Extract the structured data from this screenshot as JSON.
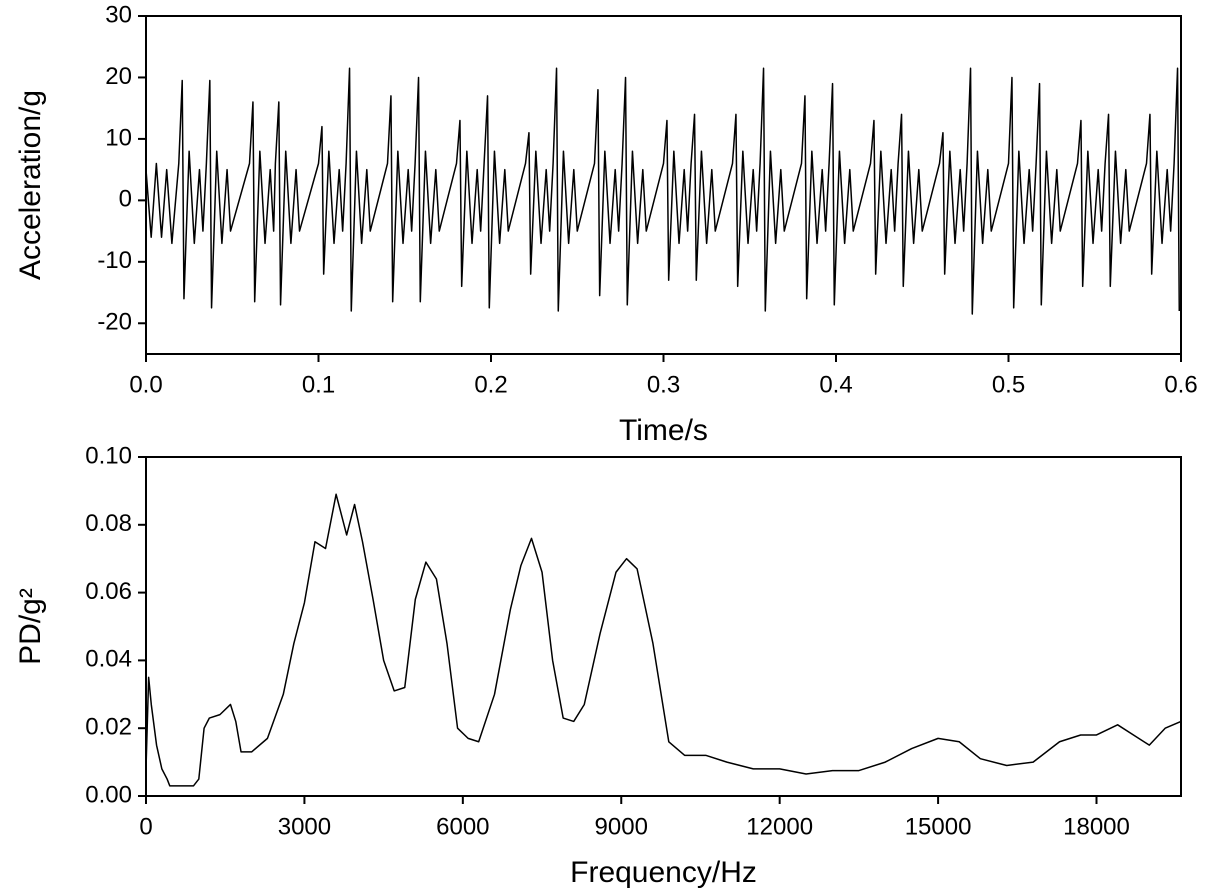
{
  "chart_data": [
    {
      "type": "line",
      "xlabel": "Time/s",
      "ylabel": "Acceleration/g",
      "xlim": [
        0,
        0.6
      ],
      "ylim": [
        -25,
        30
      ],
      "xticks": [
        {
          "value": 0,
          "label": "0.0"
        },
        0.1,
        0.2,
        0.3,
        0.4,
        0.5,
        0.6
      ],
      "yticks": [
        -20,
        -10,
        0,
        10,
        20,
        30
      ],
      "series": [
        {
          "color": "#000000",
          "x": [
            0,
            0.003,
            0.006,
            0.009,
            0.012,
            0.015,
            0.019,
            0.021,
            0.022,
            0.025,
            0.028,
            0.031,
            0.033,
            0.035,
            0.037,
            0.038,
            0.041,
            0.044,
            0.047,
            0.049,
            0.06,
            0.062,
            0.063,
            0.066,
            0.069,
            0.072,
            0.074,
            0.075,
            0.077,
            0.078,
            0.081,
            0.084,
            0.087,
            0.089,
            0.1,
            0.102,
            0.103,
            0.106,
            0.109,
            0.112,
            0.114,
            0.116,
            0.118,
            0.119,
            0.122,
            0.125,
            0.128,
            0.13,
            0.14,
            0.142,
            0.143,
            0.146,
            0.149,
            0.152,
            0.154,
            0.156,
            0.158,
            0.159,
            0.162,
            0.165,
            0.168,
            0.17,
            0.18,
            0.182,
            0.183,
            0.186,
            0.189,
            0.192,
            0.194,
            0.196,
            0.198,
            0.199,
            0.202,
            0.205,
            0.208,
            0.21,
            0.22,
            0.222,
            0.223,
            0.226,
            0.229,
            0.232,
            0.234,
            0.236,
            0.238,
            0.239,
            0.242,
            0.245,
            0.248,
            0.25,
            0.26,
            0.262,
            0.263,
            0.266,
            0.269,
            0.272,
            0.274,
            0.276,
            0.278,
            0.279,
            0.282,
            0.285,
            0.288,
            0.29,
            0.3,
            0.302,
            0.303,
            0.306,
            0.309,
            0.312,
            0.314,
            0.316,
            0.318,
            0.319,
            0.322,
            0.325,
            0.328,
            0.33,
            0.34,
            0.342,
            0.343,
            0.346,
            0.349,
            0.352,
            0.354,
            0.356,
            0.358,
            0.359,
            0.362,
            0.365,
            0.368,
            0.37,
            0.38,
            0.382,
            0.383,
            0.386,
            0.389,
            0.392,
            0.394,
            0.396,
            0.398,
            0.399,
            0.402,
            0.405,
            0.408,
            0.41,
            0.42,
            0.422,
            0.423,
            0.426,
            0.429,
            0.432,
            0.434,
            0.436,
            0.438,
            0.439,
            0.442,
            0.445,
            0.448,
            0.45,
            0.46,
            0.462,
            0.463,
            0.466,
            0.469,
            0.472,
            0.474,
            0.476,
            0.478,
            0.479,
            0.482,
            0.485,
            0.488,
            0.49,
            0.5,
            0.502,
            0.503,
            0.506,
            0.509,
            0.512,
            0.514,
            0.516,
            0.518,
            0.519,
            0.522,
            0.525,
            0.528,
            0.53,
            0.54,
            0.542,
            0.543,
            0.546,
            0.549,
            0.552,
            0.554,
            0.556,
            0.558,
            0.559,
            0.562,
            0.565,
            0.568,
            0.57,
            0.58,
            0.582,
            0.583,
            0.586,
            0.589,
            0.592,
            0.594,
            0.596,
            0.598,
            0.599
          ],
          "values": [
            5,
            -6,
            6,
            -6,
            5,
            -7,
            6,
            19.5,
            -16,
            8,
            -7,
            5,
            -5,
            6,
            19.5,
            -17.5,
            8,
            -7,
            5,
            -5,
            6,
            16,
            -16.5,
            8,
            -7,
            5,
            -5,
            6,
            16,
            -17,
            8,
            -7,
            5,
            -5,
            6,
            12,
            -12,
            8,
            -7,
            5,
            -5,
            6,
            21.5,
            -18,
            8,
            -7,
            5,
            -5,
            6,
            17,
            -16.5,
            8,
            -7,
            5,
            -5,
            6,
            20,
            -16.5,
            8,
            -7,
            5,
            -5,
            6,
            13,
            -14,
            8,
            -7,
            5,
            -5,
            6,
            17,
            -17.5,
            8,
            -7,
            5,
            -5,
            6,
            11,
            -12,
            8,
            -7,
            5,
            -5,
            6,
            21.5,
            -18,
            8,
            -7,
            5,
            -5,
            6,
            18,
            -15.5,
            8,
            -7,
            5,
            -5,
            6,
            20,
            -17,
            8,
            -7,
            5,
            -5,
            6,
            13,
            -13,
            8,
            -7,
            5,
            -5,
            6,
            14,
            -13,
            8,
            -7,
            5,
            -5,
            6,
            14,
            -14,
            8,
            -7,
            5,
            -5,
            6,
            21.5,
            -18,
            8,
            -7,
            5,
            -5,
            6,
            17,
            -16,
            8,
            -7,
            5,
            -5,
            6,
            19,
            -17,
            8,
            -7,
            5,
            -5,
            6,
            13,
            -12,
            8,
            -7,
            5,
            -5,
            6,
            14,
            -14,
            8,
            -7,
            5,
            -5,
            6,
            11,
            -12,
            8,
            -7,
            5,
            -5,
            6,
            21.5,
            -18.5,
            8,
            -7,
            5,
            -5,
            6,
            20,
            -17.5,
            8,
            -7,
            5,
            -5,
            6,
            19,
            -17,
            8,
            -7,
            5,
            -5,
            6,
            13,
            -14,
            8,
            -7,
            5,
            -5,
            6,
            14,
            -14,
            8,
            -7,
            5,
            -5,
            6,
            14,
            -12,
            8,
            -7,
            5,
            -5,
            6,
            21.5,
            -18
          ]
        }
      ]
    },
    {
      "type": "line",
      "xlabel": "Frequency/Hz",
      "ylabel": "PD/g²",
      "xlim": [
        0,
        19600
      ],
      "ylim": [
        0,
        0.1
      ],
      "xticks": [
        0,
        3000,
        6000,
        9000,
        12000,
        15000,
        18000
      ],
      "yticks": [
        {
          "value": 0,
          "label": "0.00"
        },
        {
          "value": 0.02,
          "label": "0.02"
        },
        {
          "value": 0.04,
          "label": "0.04"
        },
        {
          "value": 0.06,
          "label": "0.06"
        },
        {
          "value": 0.08,
          "label": "0.08"
        },
        {
          "value": 0.1,
          "label": "0.10"
        }
      ],
      "series": [
        {
          "color": "#000000",
          "x": [
            0,
            50,
            100,
            200,
            300,
            400,
            450,
            600,
            900,
            1000,
            1100,
            1200,
            1400,
            1600,
            1700,
            1800,
            2000,
            2300,
            2600,
            2800,
            3000,
            3200,
            3400,
            3600,
            3800,
            3950,
            4100,
            4300,
            4500,
            4700,
            4900,
            5100,
            5300,
            5500,
            5700,
            5900,
            6100,
            6300,
            6600,
            6900,
            7100,
            7300,
            7500,
            7700,
            7900,
            8100,
            8300,
            8600,
            8900,
            9100,
            9300,
            9600,
            9900,
            10200,
            10600,
            11000,
            11500,
            12000,
            12500,
            13000,
            13500,
            14000,
            14500,
            15000,
            15400,
            15800,
            16300,
            16800,
            17300,
            17700,
            18000,
            18400,
            18700,
            19000,
            19300,
            19600
          ],
          "values": [
            0.008,
            0.035,
            0.027,
            0.015,
            0.008,
            0.005,
            0.003,
            0.003,
            0.003,
            0.005,
            0.02,
            0.023,
            0.024,
            0.027,
            0.022,
            0.013,
            0.013,
            0.017,
            0.03,
            0.045,
            0.057,
            0.075,
            0.073,
            0.089,
            0.077,
            0.086,
            0.075,
            0.058,
            0.04,
            0.031,
            0.032,
            0.058,
            0.069,
            0.064,
            0.045,
            0.02,
            0.017,
            0.016,
            0.03,
            0.055,
            0.068,
            0.076,
            0.066,
            0.04,
            0.023,
            0.022,
            0.027,
            0.048,
            0.066,
            0.07,
            0.067,
            0.045,
            0.016,
            0.012,
            0.012,
            0.01,
            0.008,
            0.008,
            0.0065,
            0.0075,
            0.0075,
            0.01,
            0.014,
            0.017,
            0.016,
            0.011,
            0.009,
            0.01,
            0.016,
            0.018,
            0.018,
            0.021,
            0.018,
            0.015,
            0.02,
            0.022
          ]
        }
      ]
    }
  ]
}
